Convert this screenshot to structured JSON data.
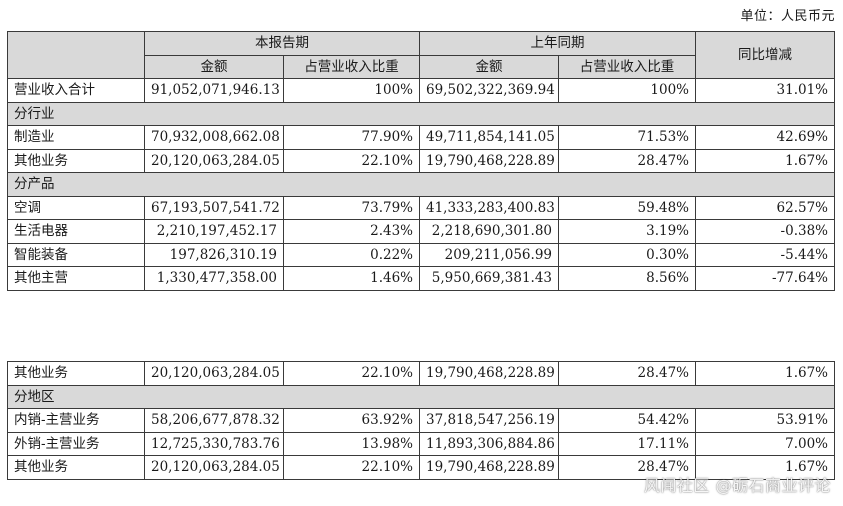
{
  "unit_note": "单位：人民币元",
  "header": {
    "current_period": "本报告期",
    "prior_period": "上年同期",
    "yoy_change": "同比增减",
    "amount": "金额",
    "share_of_revenue": "占营业收入比重"
  },
  "total_row": {
    "label": "营业收入合计",
    "cur_amount": "91,052,071,946.13",
    "cur_share": "100%",
    "prev_amount": "69,502,322,369.94",
    "prev_share": "100%",
    "yoy": "31.01%"
  },
  "by_industry": {
    "title": "分行业",
    "rows": [
      {
        "label": "制造业",
        "cur_amount": "70,932,008,662.08",
        "cur_share": "77.90%",
        "prev_amount": "49,711,854,141.05",
        "prev_share": "71.53%",
        "yoy": "42.69%"
      },
      {
        "label": "其他业务",
        "cur_amount": "20,120,063,284.05",
        "cur_share": "22.10%",
        "prev_amount": "19,790,468,228.89",
        "prev_share": "28.47%",
        "yoy": "1.67%"
      }
    ]
  },
  "by_product": {
    "title": "分产品",
    "rows": [
      {
        "label": "空调",
        "cur_amount": "67,193,507,541.72",
        "cur_share": "73.79%",
        "prev_amount": "41,333,283,400.83",
        "prev_share": "59.48%",
        "yoy": "62.57%"
      },
      {
        "label": "生活电器",
        "cur_amount": "2,210,197,452.17",
        "cur_share": "2.43%",
        "prev_amount": "2,218,690,301.80",
        "prev_share": "3.19%",
        "yoy": "-0.38%"
      },
      {
        "label": "智能装备",
        "cur_amount": "197,826,310.19",
        "cur_share": "0.22%",
        "prev_amount": "209,211,056.99",
        "prev_share": "0.30%",
        "yoy": "-5.44%"
      },
      {
        "label": "其他主营",
        "cur_amount": "1,330,477,358.00",
        "cur_share": "1.46%",
        "prev_amount": "5,950,669,381.43",
        "prev_share": "8.56%",
        "yoy": "-77.64%"
      }
    ]
  },
  "other_business_row": {
    "label": "其他业务",
    "cur_amount": "20,120,063,284.05",
    "cur_share": "22.10%",
    "prev_amount": "19,790,468,228.89",
    "prev_share": "28.47%",
    "yoy": "1.67%"
  },
  "by_region": {
    "title": "分地区",
    "rows": [
      {
        "label": "内销-主营业务",
        "cur_amount": "58,206,677,878.32",
        "cur_share": "63.92%",
        "prev_amount": "37,818,547,256.19",
        "prev_share": "54.42%",
        "yoy": "53.91%"
      },
      {
        "label": "外销-主营业务",
        "cur_amount": "12,725,330,783.76",
        "cur_share": "13.98%",
        "prev_amount": "11,893,306,884.86",
        "prev_share": "17.11%",
        "yoy": "7.00%"
      },
      {
        "label": "其他业务",
        "cur_amount": "20,120,063,284.05",
        "cur_share": "22.10%",
        "prev_amount": "19,790,468,228.89",
        "prev_share": "28.47%",
        "yoy": "1.67%"
      }
    ]
  },
  "watermark": "风闻社区 @砺石商业评论"
}
